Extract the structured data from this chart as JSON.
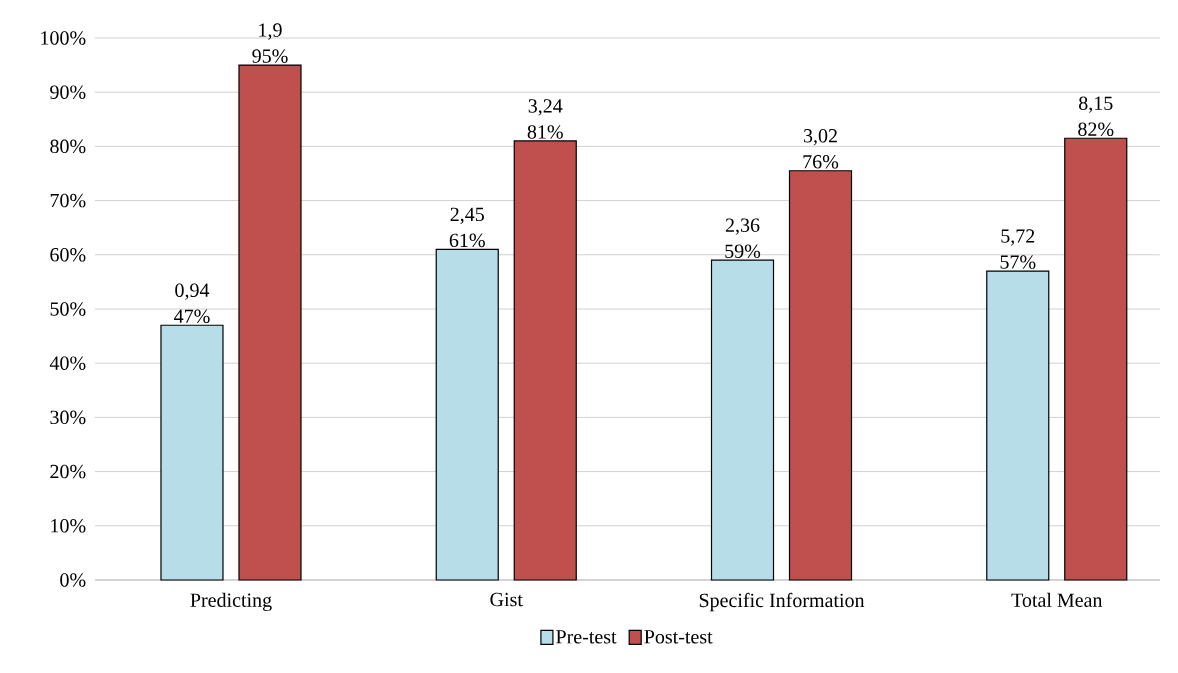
{
  "chart_data": {
    "type": "bar",
    "categories": [
      "Predicting",
      "Gist",
      "Specific Information",
      "Total Mean"
    ],
    "series": [
      {
        "name": "Pre-test",
        "color": "#b7dde8",
        "values": [
          47,
          61,
          59,
          57
        ],
        "value_labels": [
          "0,94 47%",
          "2,45 61%",
          "2,36 59%",
          "5,72 57%"
        ]
      },
      {
        "name": "Post-test",
        "color": "#c0504d",
        "values": [
          95,
          81,
          75.5,
          81.5
        ],
        "value_labels": [
          "1,9 95%",
          "3,24 81%",
          "3,02 76%",
          "8,15 82%"
        ]
      }
    ],
    "ylim": [
      0,
      100
    ],
    "yticks": [
      {
        "value": 0,
        "label": "0%"
      },
      {
        "value": 10,
        "label": "10%"
      },
      {
        "value": 20,
        "label": "20%"
      },
      {
        "value": 30,
        "label": "30%"
      },
      {
        "value": 40,
        "label": "40%"
      },
      {
        "value": 50,
        "label": "50%"
      },
      {
        "value": 60,
        "label": "60%"
      },
      {
        "value": 70,
        "label": "70%"
      },
      {
        "value": 80,
        "label": "80%"
      },
      {
        "value": 90,
        "label": "90%"
      },
      {
        "value": 100,
        "label": "100%"
      }
    ],
    "grid": "y",
    "legend": "bottom"
  }
}
